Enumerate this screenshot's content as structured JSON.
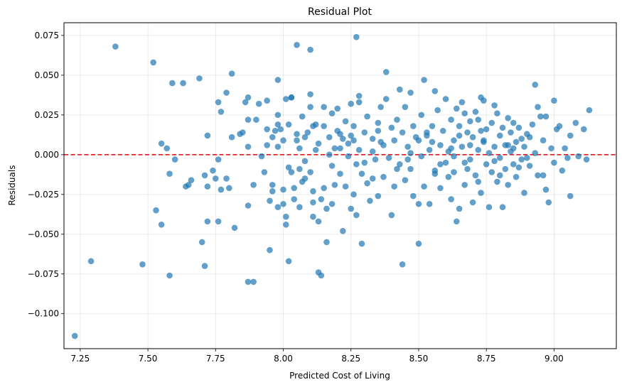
{
  "chart_data": {
    "type": "scatter",
    "title": "Residual Plot",
    "xlabel": "Predicted Cost of Living",
    "ylabel": "Residuals",
    "xlim": [
      7.19,
      9.23
    ],
    "ylim": [
      -0.122,
      0.083
    ],
    "xticks": [
      7.25,
      7.5,
      7.75,
      8.0,
      8.25,
      8.5,
      8.75,
      9.0
    ],
    "xtick_labels": [
      "7.25",
      "7.50",
      "7.75",
      "8.00",
      "8.25",
      "8.50",
      "8.75",
      "9.00"
    ],
    "yticks": [
      -0.1,
      -0.075,
      -0.05,
      -0.025,
      0.0,
      0.025,
      0.05,
      0.075
    ],
    "ytick_labels": [
      "−0.100",
      "−0.075",
      "−0.050",
      "−0.025",
      "0.000",
      "0.025",
      "0.050",
      "0.075"
    ],
    "grid": true,
    "reference_line": {
      "y": 0.0,
      "style": "dashed",
      "color": "#e31a1c"
    },
    "marker_color": "#1f77b4",
    "marker_alpha": 0.7,
    "points": [
      [
        7.23,
        -0.114
      ],
      [
        7.29,
        -0.067
      ],
      [
        7.38,
        0.068
      ],
      [
        7.48,
        -0.069
      ],
      [
        7.52,
        0.058
      ],
      [
        7.53,
        -0.035
      ],
      [
        7.55,
        0.007
      ],
      [
        7.55,
        -0.044
      ],
      [
        7.57,
        0.004
      ],
      [
        7.58,
        -0.076
      ],
      [
        7.58,
        -0.012
      ],
      [
        7.59,
        0.045
      ],
      [
        7.6,
        -0.003
      ],
      [
        7.63,
        0.045
      ],
      [
        7.64,
        -0.02
      ],
      [
        7.65,
        -0.019
      ],
      [
        7.66,
        -0.016
      ],
      [
        7.69,
        0.048
      ],
      [
        7.7,
        -0.055
      ],
      [
        7.71,
        -0.013
      ],
      [
        7.71,
        -0.07
      ],
      [
        7.72,
        0.012
      ],
      [
        7.72,
        -0.02
      ],
      [
        7.72,
        -0.042
      ],
      [
        7.74,
        -0.01
      ],
      [
        7.75,
        -0.015
      ],
      [
        7.76,
        -0.003
      ],
      [
        7.76,
        -0.042
      ],
      [
        7.76,
        0.033
      ],
      [
        7.77,
        -0.022
      ],
      [
        7.77,
        0.027
      ],
      [
        7.79,
        0.039
      ],
      [
        7.79,
        -0.015
      ],
      [
        7.8,
        -0.021
      ],
      [
        7.81,
        0.051
      ],
      [
        7.81,
        0.011
      ],
      [
        7.82,
        -0.046
      ],
      [
        7.84,
        0.013
      ],
      [
        7.85,
        0.014
      ],
      [
        7.86,
        0.033
      ],
      [
        7.87,
        0.036
      ],
      [
        7.87,
        0.005
      ],
      [
        7.87,
        0.022
      ],
      [
        7.87,
        -0.032
      ],
      [
        7.87,
        -0.08
      ],
      [
        7.89,
        -0.08
      ],
      [
        7.89,
        -0.019
      ],
      [
        7.9,
        0.022
      ],
      [
        7.91,
        0.032
      ],
      [
        7.92,
        -0.001
      ],
      [
        7.93,
        -0.011
      ],
      [
        7.94,
        0.034
      ],
      [
        7.94,
        0.016
      ],
      [
        7.94,
        0.006
      ],
      [
        7.95,
        -0.029
      ],
      [
        7.95,
        -0.06
      ],
      [
        7.96,
        -0.019
      ],
      [
        7.96,
        0.011
      ],
      [
        7.96,
        -0.023
      ],
      [
        7.97,
        0.015
      ],
      [
        7.98,
        0.025
      ],
      [
        7.98,
        0.047
      ],
      [
        7.98,
        0.019
      ],
      [
        7.98,
        0.005
      ],
      [
        7.98,
        -0.033
      ],
      [
        7.99,
        0.016
      ],
      [
        8.0,
        0.009
      ],
      [
        8.0,
        -0.022
      ],
      [
        8.0,
        -0.031
      ],
      [
        8.01,
        -0.044
      ],
      [
        8.01,
        -0.039
      ],
      [
        8.01,
        0.035
      ],
      [
        8.02,
        0.019
      ],
      [
        8.02,
        -0.008
      ],
      [
        8.02,
        -0.067
      ],
      [
        8.03,
        0.036
      ],
      [
        8.03,
        0.036
      ],
      [
        8.03,
        -0.011
      ],
      [
        8.04,
        -0.028
      ],
      [
        8.04,
        -0.021
      ],
      [
        8.05,
        0.069
      ],
      [
        8.05,
        0.013
      ],
      [
        8.05,
        0.009
      ],
      [
        8.06,
        -0.009
      ],
      [
        8.06,
        0.004
      ],
      [
        8.06,
        -0.033
      ],
      [
        8.07,
        0.024
      ],
      [
        8.07,
        -0.017
      ],
      [
        8.08,
        0.011
      ],
      [
        8.08,
        -0.004
      ],
      [
        8.09,
        0.014
      ],
      [
        8.1,
        0.066
      ],
      [
        8.1,
        0.038
      ],
      [
        8.1,
        0.03
      ],
      [
        8.1,
        -0.011
      ],
      [
        8.11,
        0.018
      ],
      [
        8.11,
        -0.023
      ],
      [
        8.11,
        -0.03
      ],
      [
        8.11,
        -0.039
      ],
      [
        8.12,
        0.019
      ],
      [
        8.12,
        0.003
      ],
      [
        8.13,
        -0.042
      ],
      [
        8.13,
        -0.074
      ],
      [
        8.14,
        -0.028
      ],
      [
        8.14,
        -0.076
      ],
      [
        8.15,
        0.03
      ],
      [
        8.15,
        0.018
      ],
      [
        8.15,
        -0.021
      ],
      [
        8.16,
        -0.055
      ],
      [
        8.16,
        -0.034
      ],
      [
        8.17,
        0.011
      ],
      [
        8.17,
        0.0
      ],
      [
        8.18,
        -0.031
      ],
      [
        8.18,
        0.026
      ],
      [
        8.19,
        0.004
      ],
      [
        8.19,
        -0.019
      ],
      [
        8.2,
        0.029
      ],
      [
        8.2,
        0.015
      ],
      [
        8.21,
        0.004
      ],
      [
        8.21,
        -0.012
      ],
      [
        8.22,
        -0.048
      ],
      [
        8.22,
        0.01
      ],
      [
        8.23,
        0.021
      ],
      [
        8.23,
        -0.02
      ],
      [
        8.24,
        0.007
      ],
      [
        8.24,
        -0.001
      ],
      [
        8.25,
        0.012
      ],
      [
        8.25,
        0.032
      ],
      [
        8.25,
        -0.034
      ],
      [
        8.26,
        0.018
      ],
      [
        8.26,
        -0.025
      ],
      [
        8.27,
        0.074
      ],
      [
        8.27,
        -0.006
      ],
      [
        8.27,
        -0.038
      ],
      [
        8.28,
        0.033
      ],
      [
        8.28,
        0.037
      ],
      [
        8.28,
        0.003
      ],
      [
        8.29,
        -0.012
      ],
      [
        8.29,
        -0.056
      ],
      [
        8.3,
        0.014
      ],
      [
        8.3,
        -0.005
      ],
      [
        8.31,
        0.024
      ],
      [
        8.31,
        -0.018
      ],
      [
        8.32,
        -0.029
      ],
      [
        8.33,
        0.01
      ],
      [
        8.33,
        0.002
      ],
      [
        8.34,
        -0.003
      ],
      [
        8.35,
        0.02
      ],
      [
        8.35,
        -0.026
      ],
      [
        8.36,
        0.03
      ],
      [
        8.36,
        0.008
      ],
      [
        8.37,
        -0.014
      ],
      [
        8.38,
        0.052
      ],
      [
        8.38,
        0.035
      ],
      [
        8.39,
        -0.002
      ],
      [
        8.4,
        0.017
      ],
      [
        8.4,
        -0.038
      ],
      [
        8.41,
        0.009
      ],
      [
        8.41,
        -0.02
      ],
      [
        8.42,
        0.022
      ],
      [
        8.43,
        0.041
      ],
      [
        8.43,
        -0.006
      ],
      [
        8.44,
        0.014
      ],
      [
        8.44,
        -0.069
      ],
      [
        8.45,
        0.03
      ],
      [
        8.45,
        -0.016
      ],
      [
        8.46,
        0.005
      ],
      [
        8.47,
        0.039
      ],
      [
        8.47,
        -0.009
      ],
      [
        8.48,
        0.018
      ],
      [
        8.48,
        -0.026
      ],
      [
        8.49,
        0.011
      ],
      [
        8.5,
        -0.031
      ],
      [
        8.5,
        -0.056
      ],
      [
        8.51,
        0.025
      ],
      [
        8.51,
        -0.001
      ],
      [
        8.52,
        0.047
      ],
      [
        8.52,
        -0.02
      ],
      [
        8.53,
        0.012
      ],
      [
        8.54,
        0.003
      ],
      [
        8.54,
        -0.031
      ],
      [
        8.55,
        0.018
      ],
      [
        8.56,
        0.04
      ],
      [
        8.56,
        -0.01
      ],
      [
        8.57,
        0.028
      ],
      [
        8.58,
        0.006
      ],
      [
        8.58,
        -0.021
      ],
      [
        8.59,
        0.015
      ],
      [
        8.6,
        0.035
      ],
      [
        8.6,
        -0.005
      ],
      [
        8.61,
        -0.014
      ],
      [
        8.62,
        0.022
      ],
      [
        8.62,
        -0.028
      ],
      [
        8.63,
        0.009
      ],
      [
        8.63,
        -0.001
      ],
      [
        8.64,
        0.029
      ],
      [
        8.64,
        -0.042
      ],
      [
        8.65,
        0.018
      ],
      [
        8.65,
        -0.034
      ],
      [
        8.66,
        0.033
      ],
      [
        8.66,
        0.005
      ],
      [
        8.67,
        -0.019
      ],
      [
        8.67,
        0.026
      ],
      [
        8.68,
        0.014
      ],
      [
        8.68,
        -0.009
      ],
      [
        8.69,
        0.021
      ],
      [
        8.69,
        -0.003
      ],
      [
        8.7,
        0.011
      ],
      [
        8.7,
        -0.03
      ],
      [
        8.71,
        0.027
      ],
      [
        8.71,
        -0.013
      ],
      [
        8.72,
        0.003
      ],
      [
        8.72,
        0.022
      ],
      [
        8.73,
        0.036
      ],
      [
        8.73,
        -0.024
      ],
      [
        8.74,
        0.034
      ],
      [
        8.74,
        0.008
      ],
      [
        8.75,
        -0.006
      ],
      [
        8.75,
        0.016
      ],
      [
        8.76,
        -0.033
      ],
      [
        8.76,
        0.001
      ],
      [
        8.77,
        0.02
      ],
      [
        8.77,
        -0.011
      ],
      [
        8.78,
        0.031
      ],
      [
        8.78,
        0.005
      ],
      [
        8.79,
        -0.017
      ],
      [
        8.79,
        0.026
      ],
      [
        8.8,
        -0.002
      ],
      [
        8.8,
        0.012
      ],
      [
        8.81,
        -0.033
      ],
      [
        8.81,
        0.017
      ],
      [
        8.82,
        -0.009
      ],
      [
        8.82,
        0.006
      ],
      [
        8.83,
        0.023
      ],
      [
        8.83,
        -0.019
      ],
      [
        8.84,
        0.002
      ],
      [
        8.84,
        0.014
      ],
      [
        8.85,
        -0.006
      ],
      [
        8.85,
        0.02
      ],
      [
        8.86,
        0.008
      ],
      [
        8.86,
        -0.014
      ],
      [
        8.87,
        0.017
      ],
      [
        8.88,
        -0.003
      ],
      [
        8.88,
        0.01
      ],
      [
        8.89,
        -0.024
      ],
      [
        8.89,
        0.005
      ],
      [
        8.9,
        0.013
      ],
      [
        8.91,
        -0.007
      ],
      [
        8.92,
        0.019
      ],
      [
        8.93,
        0.001
      ],
      [
        8.93,
        0.044
      ],
      [
        8.94,
        0.03
      ],
      [
        8.94,
        -0.013
      ],
      [
        8.95,
        0.024
      ],
      [
        8.96,
        0.009
      ],
      [
        8.97,
        -0.022
      ],
      [
        8.97,
        0.024
      ],
      [
        8.98,
        -0.03
      ],
      [
        8.99,
        0.004
      ],
      [
        9.0,
        0.034
      ],
      [
        9.0,
        -0.005
      ],
      [
        9.01,
        0.016
      ],
      [
        9.02,
        0.018
      ],
      [
        9.03,
        -0.01
      ],
      [
        9.04,
        0.004
      ],
      [
        9.05,
        -0.002
      ],
      [
        9.06,
        0.012
      ],
      [
        9.06,
        -0.026
      ],
      [
        9.08,
        0.02
      ],
      [
        9.09,
        -0.001
      ],
      [
        9.11,
        0.016
      ],
      [
        9.12,
        -0.003
      ],
      [
        9.13,
        0.028
      ],
      [
        8.56,
        -0.012
      ],
      [
        8.61,
        0.002
      ],
      [
        8.67,
        -0.005
      ],
      [
        8.74,
        0.009
      ],
      [
        8.78,
        -0.004
      ],
      [
        8.83,
        0.006
      ],
      [
        8.87,
        -0.008
      ],
      [
        8.91,
        0.011
      ],
      [
        8.72,
        -0.017
      ],
      [
        8.65,
        0.012
      ],
      [
        8.58,
        -0.006
      ],
      [
        8.53,
        0.014
      ],
      [
        8.47,
        0.001
      ],
      [
        8.42,
        -0.009
      ],
      [
        8.37,
        0.006
      ],
      [
        8.33,
        -0.015
      ],
      [
        8.26,
        0.009
      ],
      [
        8.21,
        0.013
      ],
      [
        8.18,
        -0.007
      ],
      [
        8.13,
        0.007
      ],
      [
        8.08,
        -0.015
      ],
      [
        8.35,
        0.015
      ],
      [
        8.46,
        -0.003
      ],
      [
        8.55,
        0.008
      ],
      [
        8.63,
        -0.011
      ],
      [
        8.69,
        0.006
      ],
      [
        8.8,
        -0.013
      ],
      [
        8.85,
        0.004
      ],
      [
        8.9,
        -0.002
      ],
      [
        8.96,
        -0.013
      ],
      [
        8.73,
        0.015
      ],
      [
        8.62,
        0.004
      ],
      [
        8.5,
        0.009
      ]
    ]
  }
}
